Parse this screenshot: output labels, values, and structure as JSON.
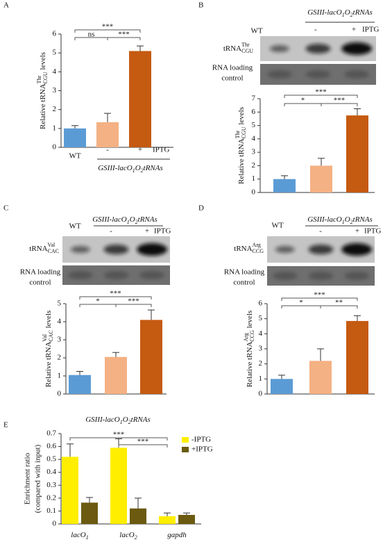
{
  "chart_data": [
    {
      "panel": "A",
      "type": "bar",
      "categories": [
        "WT",
        "-",
        "+"
      ],
      "treatment": "IPTG",
      "genotype": [
        "GSIII-lacO",
        "1",
        "O",
        "2",
        "tRNAs"
      ],
      "values": [
        1.0,
        1.33,
        5.1
      ],
      "errors": [
        0.15,
        0.47,
        0.27
      ],
      "colors": [
        "#5b9bd5",
        "#f4b183",
        "#c55a11"
      ],
      "ylim": [
        0,
        6
      ],
      "yticks": [
        0,
        1,
        2,
        3,
        4,
        5,
        6
      ],
      "ylabel": {
        "pre": "Relative tRNA",
        "sup": "Thr",
        "sub": "CGU",
        "post": " levels"
      },
      "significance": [
        {
          "pair": [
            0,
            1
          ],
          "label": "ns"
        },
        {
          "pair": [
            1,
            2
          ],
          "label": "***"
        },
        {
          "pair": [
            0,
            2
          ],
          "label": "***"
        }
      ]
    },
    {
      "panel": "B",
      "type": "bar",
      "categories": [
        "WT",
        "-",
        "+"
      ],
      "treatment": "IPTG",
      "genotype": [
        "GSIII-lacO",
        "1",
        "O",
        "2",
        "tRNAs"
      ],
      "blot": {
        "label": {
          "pre": "tRNA",
          "sup": "Thr",
          "sub": "CGU"
        },
        "loading": [
          "RNA loading",
          "control"
        ]
      },
      "values": [
        1.0,
        2.0,
        5.75
      ],
      "errors": [
        0.25,
        0.55,
        0.5
      ],
      "colors": [
        "#5b9bd5",
        "#f4b183",
        "#c55a11"
      ],
      "ylim": [
        0,
        7
      ],
      "yticks": [
        0,
        1,
        2,
        3,
        4,
        5,
        6,
        7
      ],
      "ylabel": {
        "pre": "Relative tRNA",
        "sup": "Thr",
        "sub": "CGU",
        "post": " levels"
      },
      "significance": [
        {
          "pair": [
            0,
            1
          ],
          "label": "*"
        },
        {
          "pair": [
            1,
            2
          ],
          "label": "***"
        },
        {
          "pair": [
            0,
            2
          ],
          "label": "***"
        }
      ]
    },
    {
      "panel": "C",
      "type": "bar",
      "categories": [
        "WT",
        "-",
        "+"
      ],
      "treatment": "IPTG",
      "genotype": [
        "GSIII-lacO",
        "1",
        "O",
        "2",
        "tRNAs"
      ],
      "blot": {
        "label": {
          "pre": "tRNA",
          "sup": "Val",
          "sub": "CAC"
        },
        "loading": [
          "RNA loading",
          "control"
        ]
      },
      "values": [
        1.05,
        2.05,
        4.1
      ],
      "errors": [
        0.2,
        0.25,
        0.55
      ],
      "colors": [
        "#5b9bd5",
        "#f4b183",
        "#c55a11"
      ],
      "ylim": [
        0,
        5
      ],
      "yticks": [
        0,
        1,
        2,
        3,
        4,
        5
      ],
      "ylabel": {
        "pre": "Relative tRNA",
        "sup": "Val",
        "sub": "CAC",
        "post": " levels"
      },
      "significance": [
        {
          "pair": [
            0,
            1
          ],
          "label": "*"
        },
        {
          "pair": [
            1,
            2
          ],
          "label": "***"
        },
        {
          "pair": [
            0,
            2
          ],
          "label": "***"
        }
      ]
    },
    {
      "panel": "D",
      "type": "bar",
      "categories": [
        "WT",
        "-",
        "+"
      ],
      "treatment": "IPTG",
      "genotype": [
        "GSIII-lacO",
        "1",
        "O",
        "2",
        "tRNAs"
      ],
      "blot": {
        "label": {
          "pre": "tRNA",
          "sup": "Arg",
          "sub": "CCG"
        },
        "loading": [
          "RNA loading",
          "control"
        ]
      },
      "values": [
        1.0,
        2.2,
        4.85
      ],
      "errors": [
        0.25,
        0.8,
        0.35
      ],
      "colors": [
        "#5b9bd5",
        "#f4b183",
        "#c55a11"
      ],
      "ylim": [
        0,
        6
      ],
      "yticks": [
        0,
        1,
        2,
        3,
        4,
        5,
        6
      ],
      "ylabel": {
        "pre": "Relative tRNA",
        "sup": "Arg",
        "sub": "CCG",
        "post": " levels"
      },
      "significance": [
        {
          "pair": [
            0,
            1
          ],
          "label": "*"
        },
        {
          "pair": [
            1,
            2
          ],
          "label": "**"
        },
        {
          "pair": [
            0,
            2
          ],
          "label": "***"
        }
      ]
    },
    {
      "panel": "E",
      "type": "grouped_bar",
      "genotype": [
        "GSIII-lacO",
        "1",
        "O",
        "2",
        "tRNAs"
      ],
      "categories": [
        [
          "lacO",
          "1"
        ],
        [
          "lacO",
          "2"
        ],
        [
          "gapdh"
        ]
      ],
      "series": [
        {
          "name": "-IPTG",
          "color": "#ffee00",
          "values": [
            0.52,
            0.59,
            0.06
          ],
          "errors": [
            0.1,
            0.07,
            0.025
          ]
        },
        {
          "name": "+IPTG",
          "color": "#6b5a10",
          "values": [
            0.165,
            0.12,
            0.07
          ],
          "errors": [
            0.04,
            0.08,
            0.015
          ]
        }
      ],
      "ylim": [
        0,
        0.7
      ],
      "yticks": [
        0,
        0.1,
        0.2,
        0.3,
        0.4,
        0.5,
        0.6,
        0.7
      ],
      "ylabel": [
        "Enrichment ratio",
        "(compared with input)"
      ],
      "significance": [
        {
          "pair": [
            1,
            2
          ],
          "label": "***"
        },
        {
          "pair": [
            0,
            2
          ],
          "label": "***"
        }
      ]
    }
  ]
}
